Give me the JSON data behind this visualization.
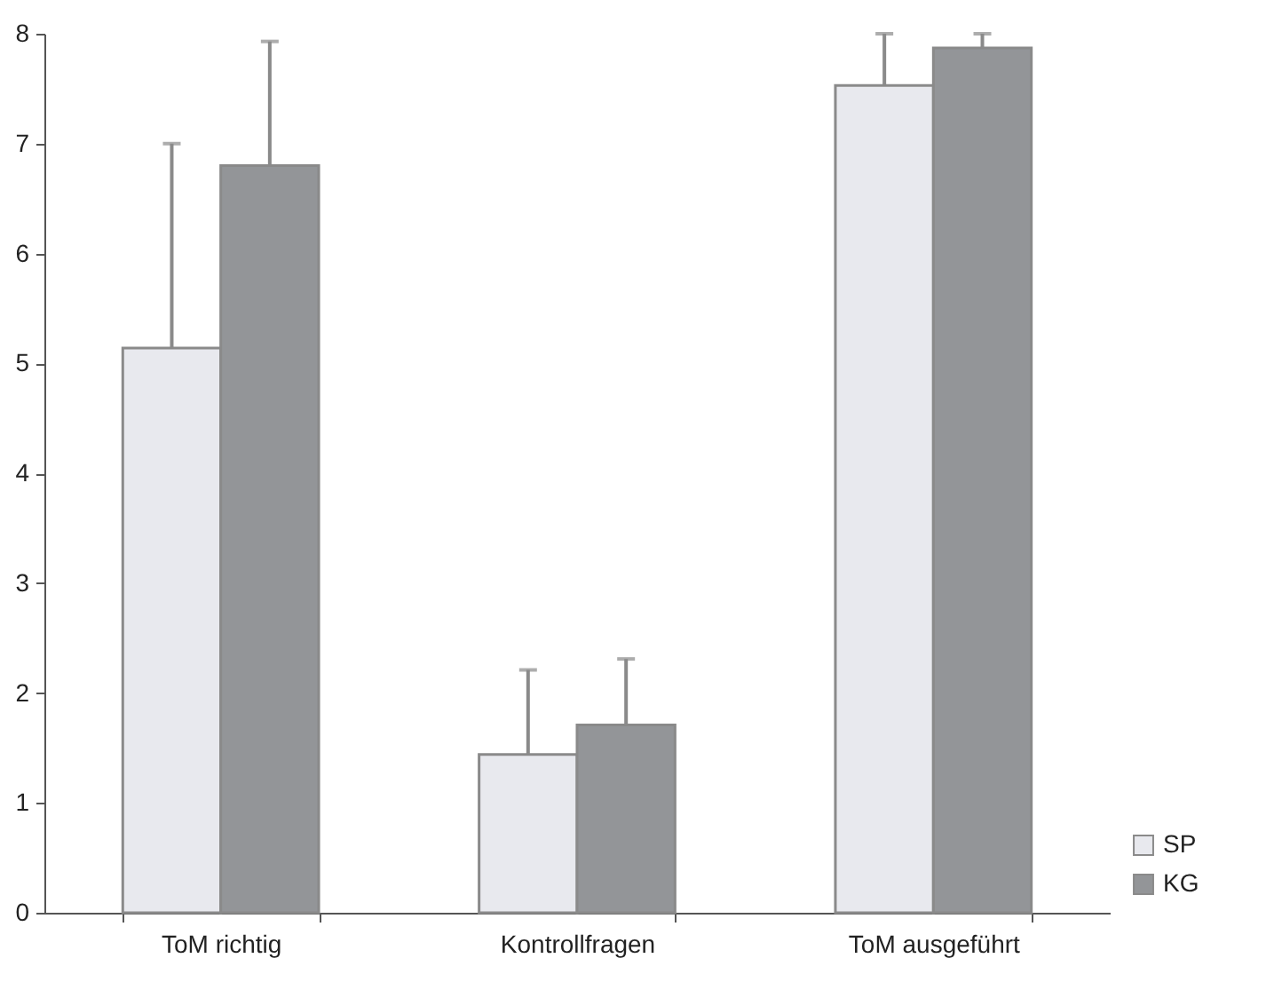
{
  "chart_data": {
    "type": "bar",
    "categories": [
      "ToM richtig",
      "Kontrollfragen",
      "ToM ausgeführt"
    ],
    "series": [
      {
        "name": "SP",
        "color": "#e8e9ee",
        "values": [
          5.14,
          1.44,
          7.53
        ],
        "errors": [
          [
            5.14,
            7.0
          ],
          [
            1.44,
            2.21
          ],
          [
            7.53,
            8.0
          ]
        ]
      },
      {
        "name": "KG",
        "color": "#939598",
        "values": [
          6.8,
          1.71,
          7.87
        ],
        "errors": [
          [
            6.8,
            7.93
          ],
          [
            1.71,
            2.31
          ],
          [
            7.87,
            8.0
          ]
        ]
      }
    ],
    "ylim": [
      0,
      8
    ],
    "yticks": [
      0,
      1,
      2,
      3,
      4,
      5,
      6,
      7,
      8
    ],
    "grid": false,
    "legend": "bottom right"
  }
}
